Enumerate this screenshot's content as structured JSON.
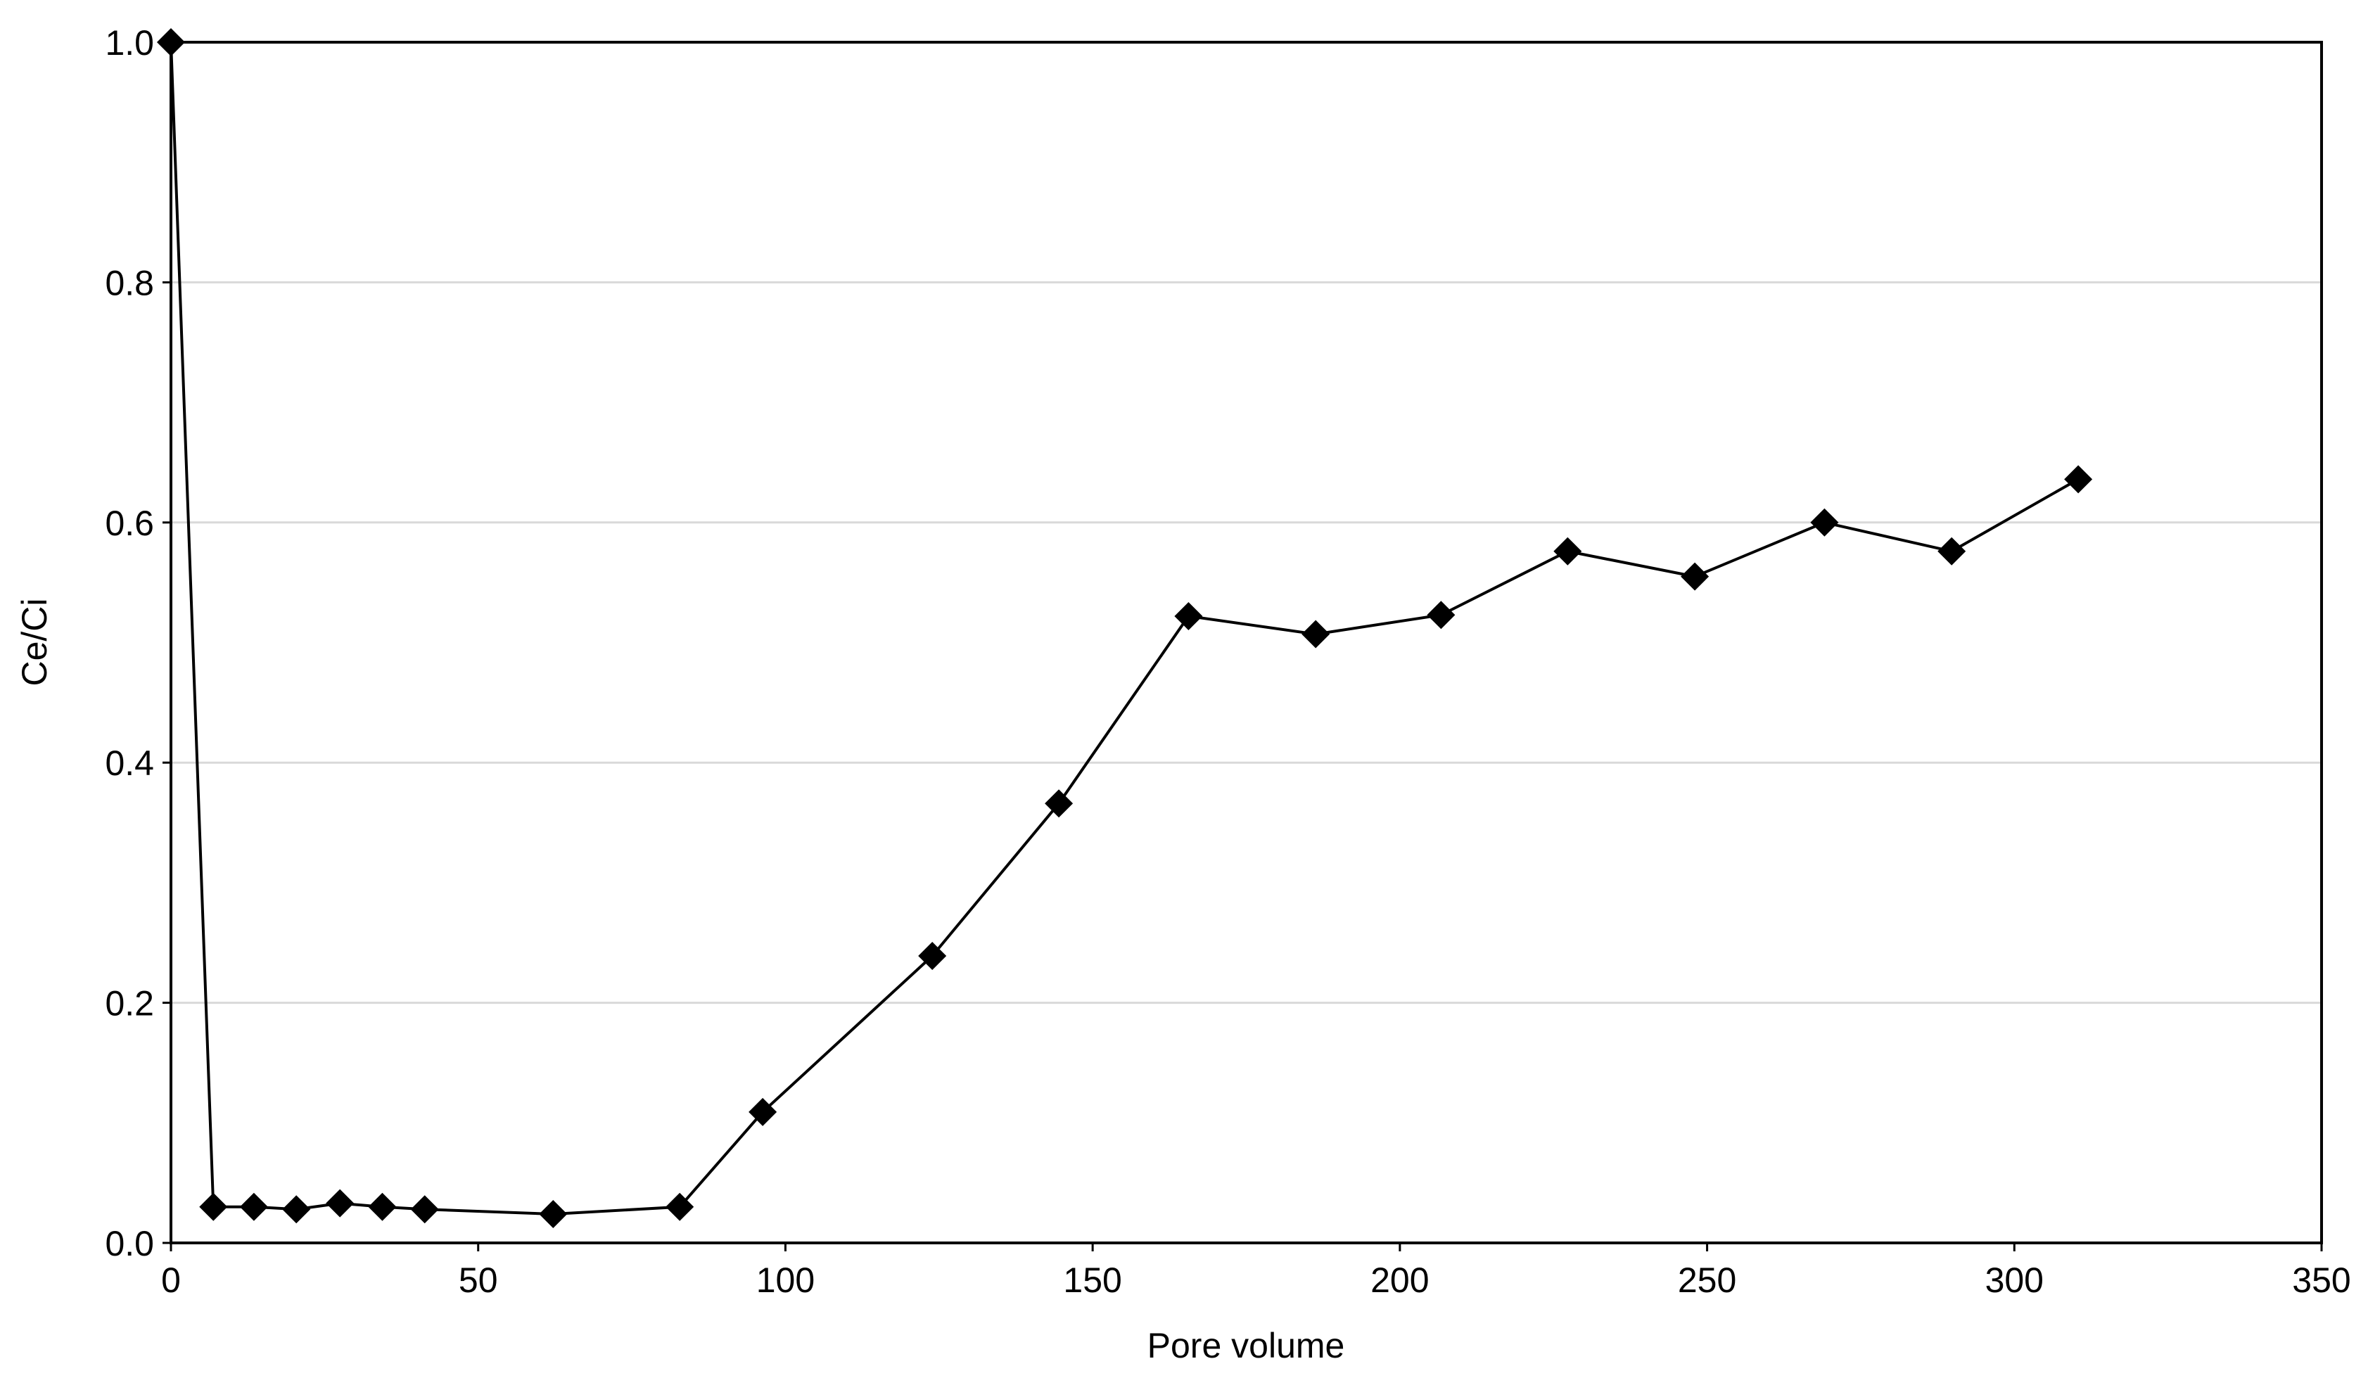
{
  "chart_data": {
    "type": "line",
    "x_label": "Pore volume",
    "y_label": "Ce/Ci",
    "x": [
      0,
      6.9,
      13.5,
      20.4,
      27.5,
      34.4,
      41.3,
      62.2,
      82.8,
      96.3,
      123.9,
      144.5,
      165.6,
      186.3,
      206.7,
      227.3,
      248,
      269.1,
      289.8,
      310.4
    ],
    "series": [
      {
        "color": "#000000",
        "values": [
          1.0,
          0.03,
          0.03,
          0.028,
          0.033,
          0.03,
          0.028,
          0.024,
          0.03,
          0.109,
          0.239,
          0.366,
          0.522,
          0.507,
          0.523,
          0.576,
          0.555,
          0.6,
          0.576,
          0.636
        ]
      }
    ],
    "xlim": [
      0,
      350
    ],
    "xticks": [
      0,
      50,
      100,
      150,
      200,
      250,
      300,
      350
    ],
    "ylim": [
      0,
      1
    ],
    "yticks": [
      {
        "value": 0,
        "label": "0.0"
      },
      0.2,
      0.4,
      0.6,
      0.8,
      {
        "value": 1,
        "label": "1.0"
      }
    ],
    "grid": true
  }
}
